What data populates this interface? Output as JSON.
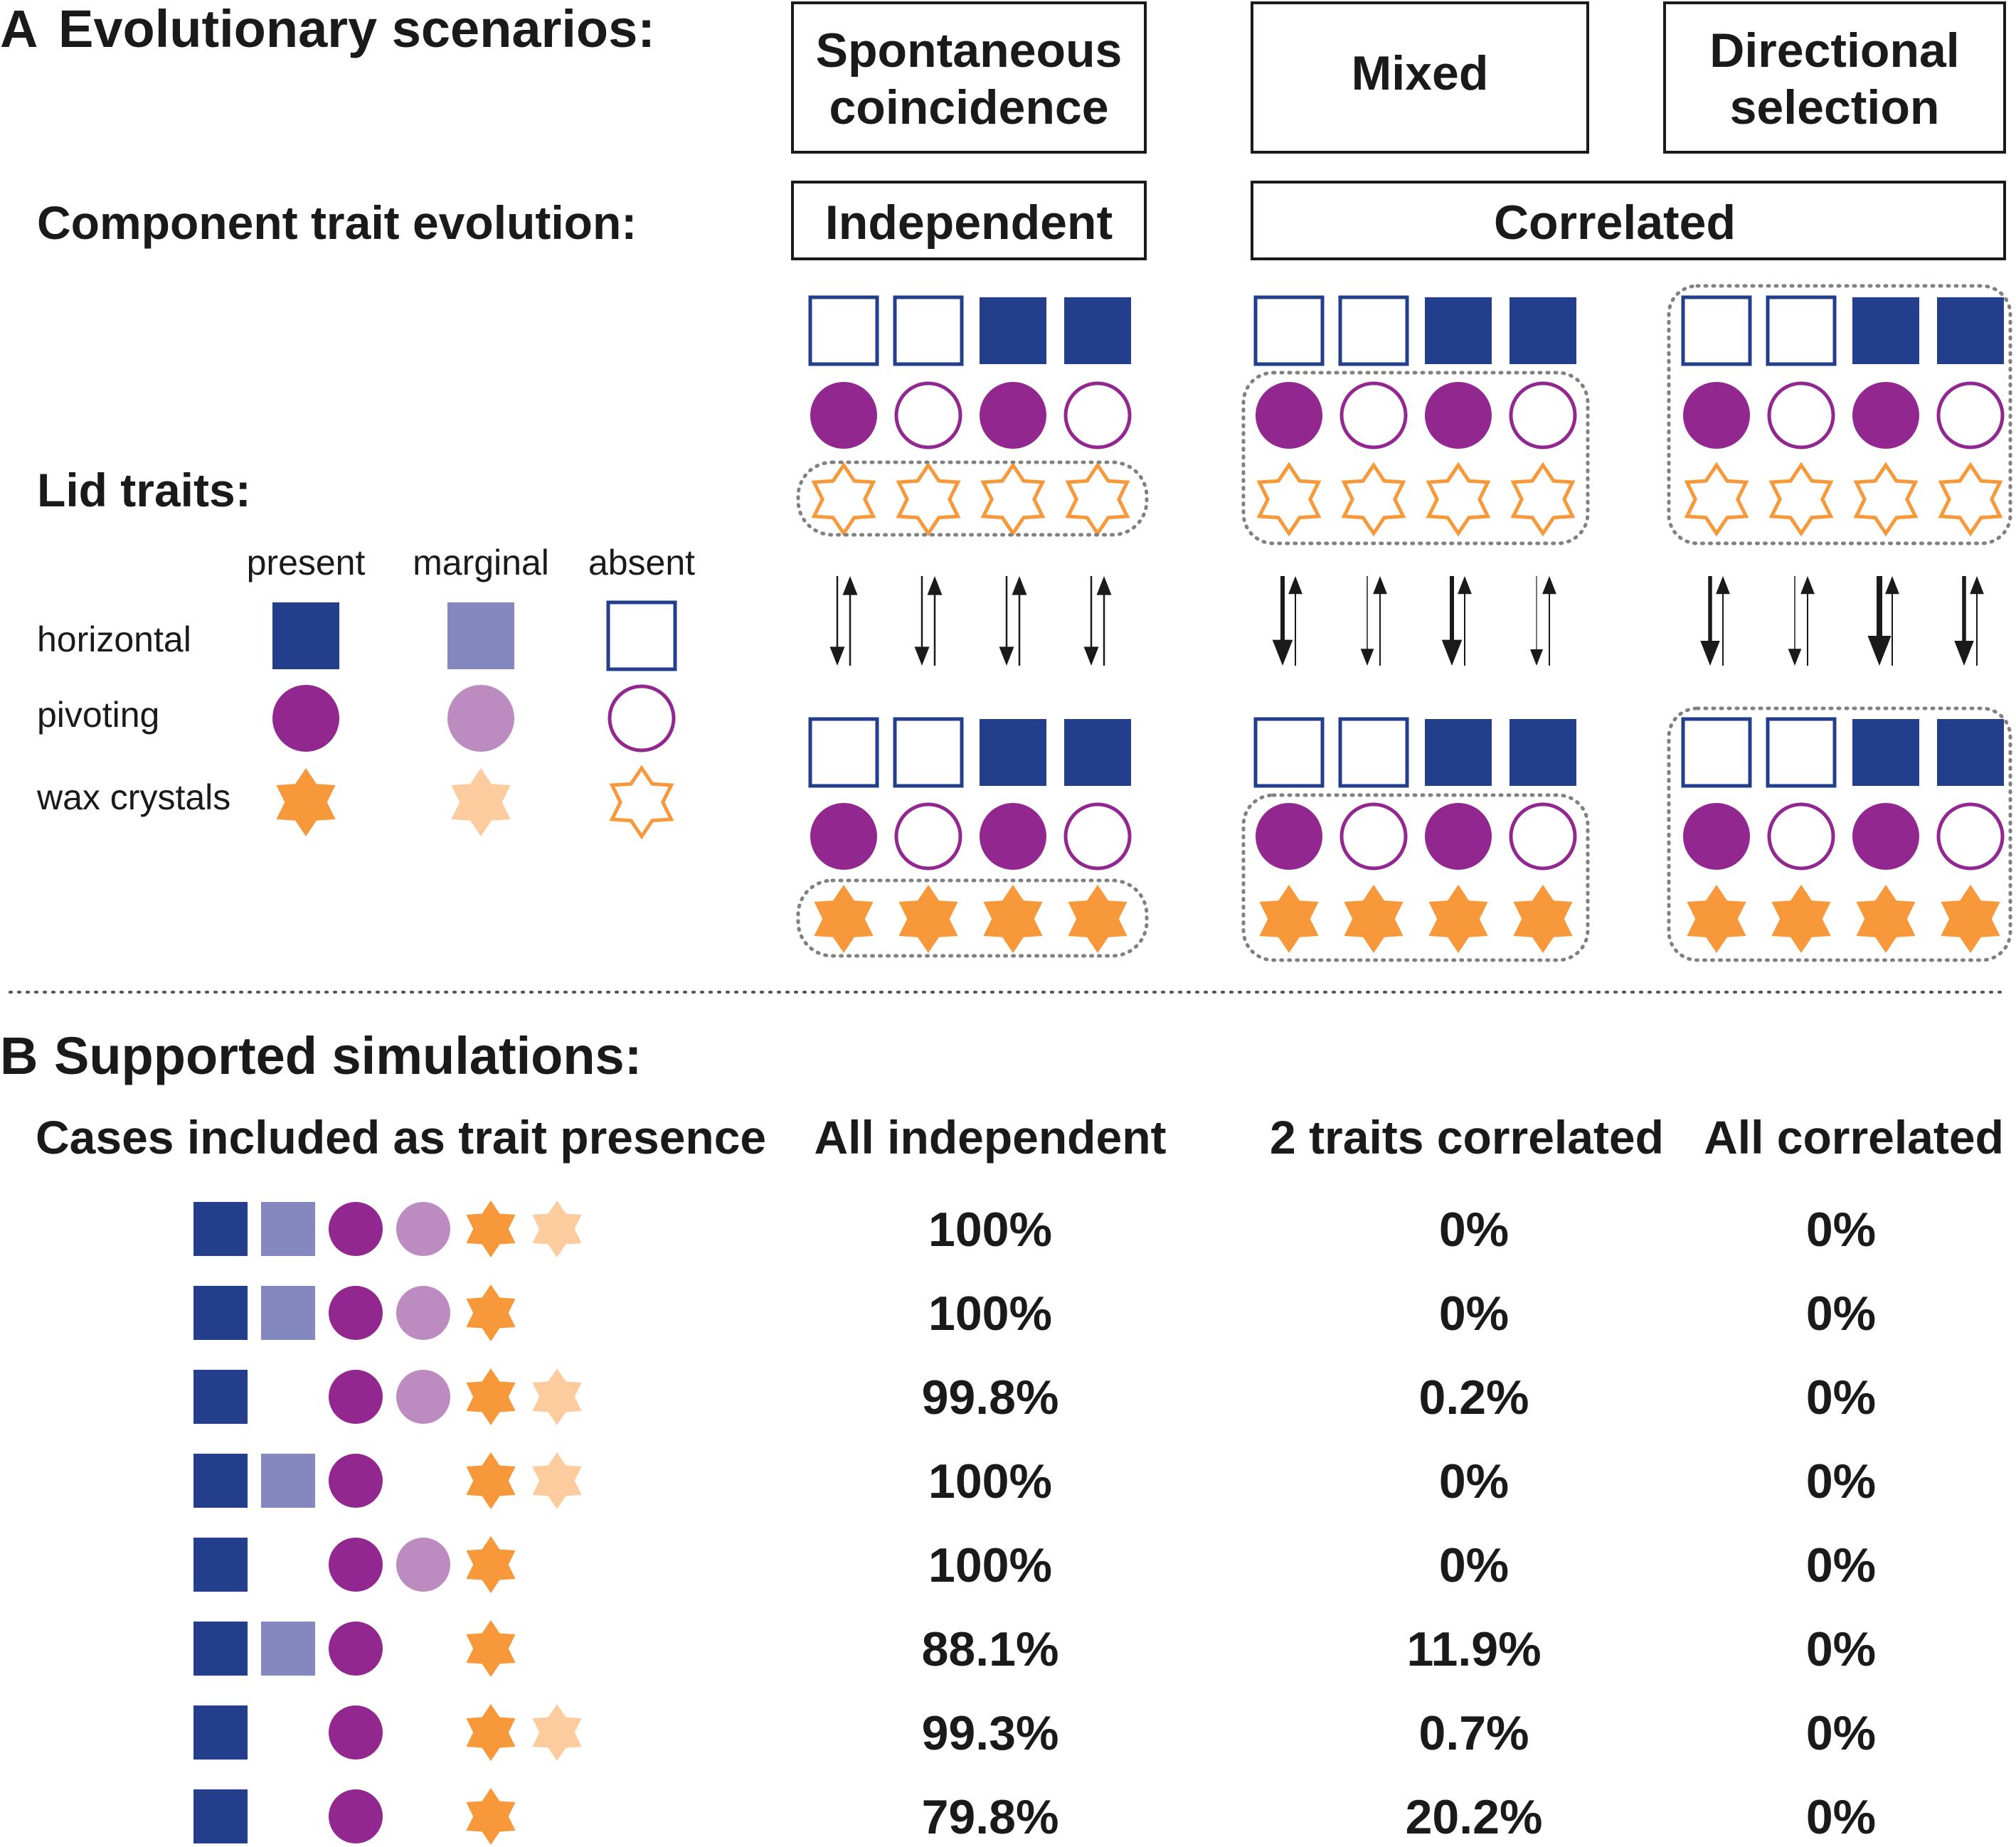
{
  "panel_a": {
    "letter": "A",
    "title": "Evolutionary scenarios:",
    "row_component_label": "Component trait evolution:",
    "row_lid_label": "Lid traits:",
    "scenarios": [
      {
        "line1": "Spontaneous",
        "line2": "coincidence"
      },
      {
        "line1": "Mixed",
        "line2": ""
      },
      {
        "line1": "Directional",
        "line2": "selection"
      }
    ],
    "evolution_types": [
      "Independent",
      "Correlated"
    ],
    "legend": {
      "columns": [
        "present",
        "marginal",
        "absent"
      ],
      "rows": [
        "horizontal",
        "pivoting",
        "wax crystals"
      ]
    }
  },
  "panel_b": {
    "letter": "B",
    "title": "Supported simulations:",
    "headers": [
      "Cases included as trait presence",
      "All independent",
      "2 traits correlated",
      "All correlated"
    ],
    "rows": [
      {
        "h_marginal": true,
        "p_marginal": true,
        "w_marginal": true,
        "values": [
          "100%",
          "0%",
          "0%"
        ]
      },
      {
        "h_marginal": true,
        "p_marginal": true,
        "w_marginal": false,
        "values": [
          "100%",
          "0%",
          "0%"
        ]
      },
      {
        "h_marginal": false,
        "p_marginal": true,
        "w_marginal": true,
        "values": [
          "99.8%",
          "0.2%",
          "0%"
        ]
      },
      {
        "h_marginal": true,
        "p_marginal": false,
        "w_marginal": true,
        "values": [
          "100%",
          "0%",
          "0%"
        ]
      },
      {
        "h_marginal": false,
        "p_marginal": true,
        "w_marginal": false,
        "values": [
          "100%",
          "0%",
          "0%"
        ]
      },
      {
        "h_marginal": true,
        "p_marginal": false,
        "w_marginal": false,
        "values": [
          "88.1%",
          "11.9%",
          "0%"
        ]
      },
      {
        "h_marginal": false,
        "p_marginal": false,
        "w_marginal": true,
        "values": [
          "99.3%",
          "0.7%",
          "0%"
        ]
      },
      {
        "h_marginal": false,
        "p_marginal": false,
        "w_marginal": false,
        "values": [
          "79.8%",
          "20.2%",
          "0%"
        ]
      }
    ]
  },
  "colors": {
    "horizontal_present": "#233e8b",
    "horizontal_marginal": "#8488be",
    "pivoting_present": "#92278f",
    "pivoting_marginal": "#bc8cc1",
    "wax_present": "#f7993a",
    "wax_marginal": "#fccc9e",
    "dotted": "#808080"
  }
}
